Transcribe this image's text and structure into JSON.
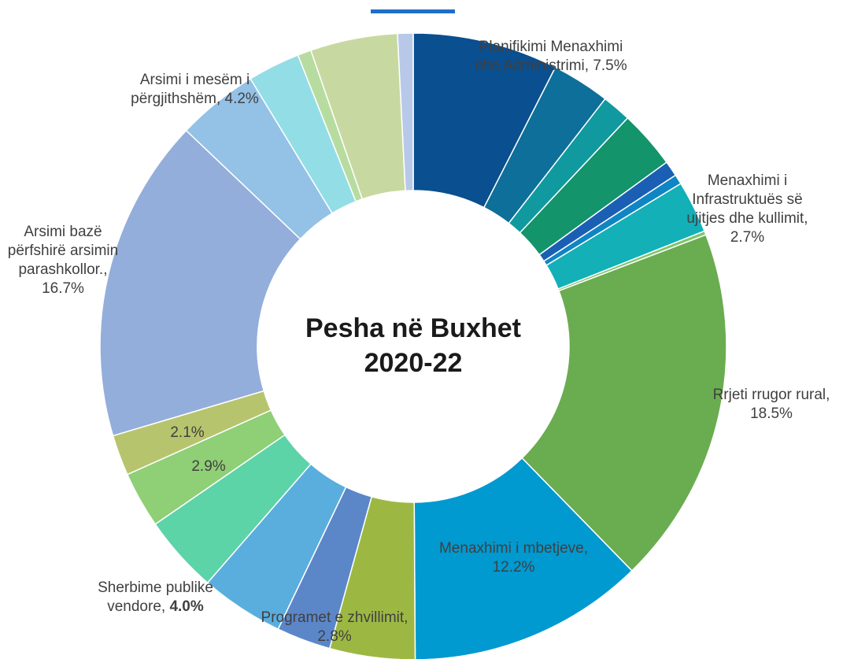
{
  "chart_data": {
    "type": "pie",
    "title": "Pesha në Buxhet 2020-22",
    "categories": [
      "Planifikimi Menaxhimi dhe Administrimi,",
      null,
      null,
      null,
      null,
      null,
      "Menaxhimi i Infrastruktuës së ujitjes dhe kullimit,",
      null,
      "Rrjeti rrugor rural,",
      "Menaxhimi i mbetjeve,",
      null,
      "Programet e zhvillimit,",
      null,
      "Sherbime publike vendore,",
      null,
      null,
      "Arsimi bazë përfshirë arsimin parashkollor.,",
      "Arsimi i mesëm i përgjithshëm,",
      null,
      null,
      null,
      null
    ],
    "values": [
      7.5,
      3,
      1.5,
      3,
      0.8,
      0.5,
      2.7,
      0.2,
      18.5,
      12.2,
      4.4,
      2.8,
      4.3,
      4.0,
      2.9,
      2.1,
      16.7,
      4.2,
      2.7,
      0.7,
      4.5,
      0.8
    ],
    "value_labels": [
      "7.5%",
      null,
      null,
      null,
      null,
      null,
      "2.7%",
      null,
      "18.5%",
      "12.2%",
      null,
      "2.8%",
      null,
      "4.0%",
      "2.9%",
      "2.1%",
      "16.7%",
      "4.2%",
      null,
      null,
      null,
      null
    ],
    "colors": [
      "#0a4f8f",
      "#0e6f9a",
      "#109aa0",
      "#13946b",
      "#1a5fb4",
      "#0f85c4",
      "#13b0b8",
      "#7fc46a",
      "#6aac50",
      "#0099d0",
      "#9cb843",
      "#5b87c9",
      "#5aaedd",
      "#5dd3a8",
      "#8fcf76",
      "#b7c46e",
      "#94aedb",
      "#94c1e6",
      "#93dee6",
      "#b7dca0",
      "#c7d9a0",
      "#b8c8e8"
    ]
  }
}
